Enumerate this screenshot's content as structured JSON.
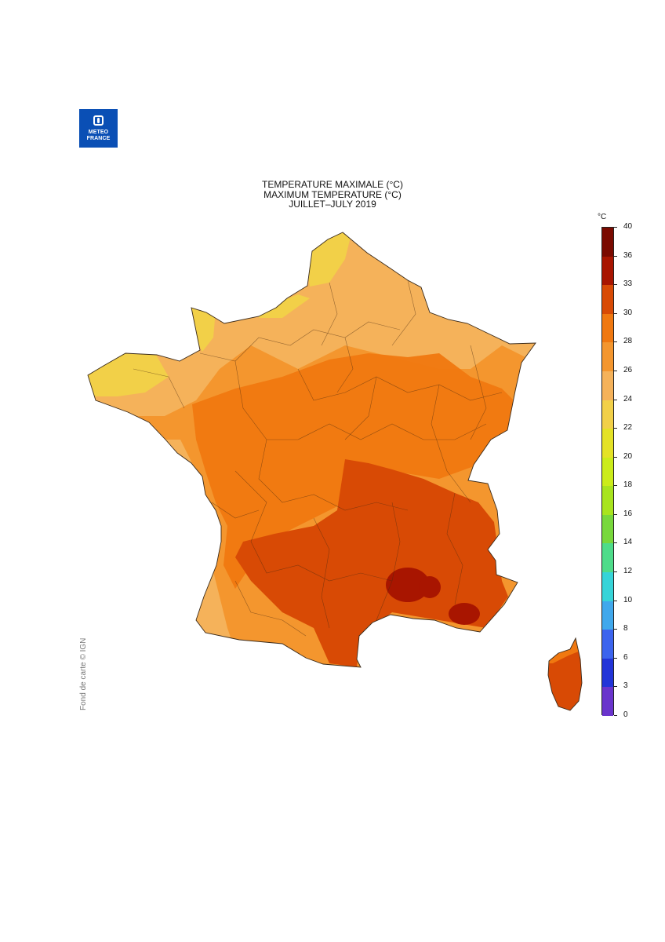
{
  "logo": {
    "line1": "METEO",
    "line2": "FRANCE",
    "icon": "meteo-france-logo-icon"
  },
  "title": {
    "line1": "TEMPERATURE MAXIMALE (°C)",
    "line2": "MAXIMUM TEMPERATURE (°C)",
    "line3": "JUILLET–JULY 2019"
  },
  "credit": "Fond de carte © IGN",
  "legend": {
    "unit": "°C",
    "ticks": [
      "40",
      "36",
      "33",
      "30",
      "28",
      "26",
      "24",
      "22",
      "20",
      "18",
      "16",
      "14",
      "12",
      "10",
      "8",
      "6",
      "3",
      "0"
    ],
    "colors": [
      "#7a0a00",
      "#a81500",
      "#d84a05",
      "#f07810",
      "#f4962e",
      "#f5b25a",
      "#f2d048",
      "#e4e226",
      "#cbec1a",
      "#a8e41e",
      "#78d83c",
      "#4edc8a",
      "#36d4d8",
      "#40a8ec",
      "#3c64ee",
      "#2234d8",
      "#6a34cc",
      "#e01ef0"
    ]
  },
  "map": {
    "region": "France",
    "temperature_bands_celsius": [
      "22-24",
      "24-26",
      "26-28",
      "28-30",
      "30-33",
      "33-36"
    ],
    "corsica_band_celsius": "30-33"
  }
}
